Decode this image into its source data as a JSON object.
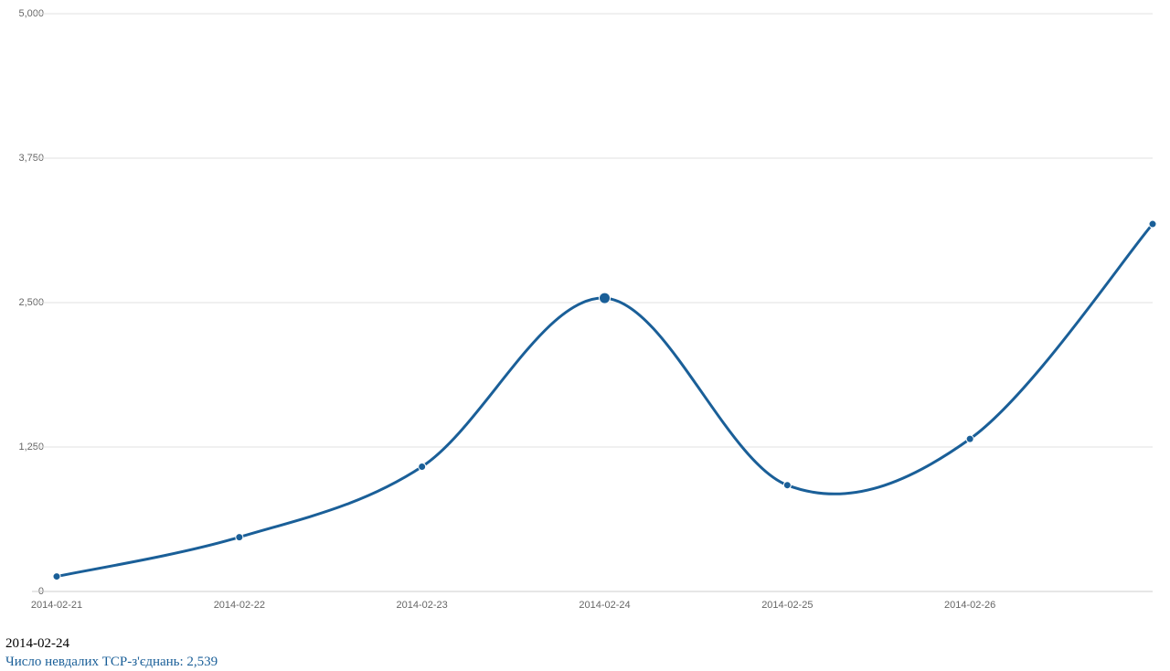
{
  "chart_data": {
    "type": "line",
    "categories": [
      "2014-02-21",
      "2014-02-22",
      "2014-02-23",
      "2014-02-24",
      "2014-02-25",
      "2014-02-26",
      null
    ],
    "values": [
      130,
      470,
      1080,
      2539,
      920,
      1320,
      3180
    ],
    "color": "#1a5f98",
    "ylim": [
      0,
      5000
    ],
    "yticks": [
      0,
      {
        "value": 1250,
        "label": "1,250"
      },
      {
        "value": 2500,
        "label": "2,500"
      },
      {
        "value": 3750,
        "label": "3,750"
      },
      {
        "value": 5000,
        "label": "5,000"
      }
    ],
    "grid": true
  },
  "tooltip": {
    "title": "2014-02-24",
    "text": "Число невдалих TCP-з'єднань: 2,539"
  }
}
